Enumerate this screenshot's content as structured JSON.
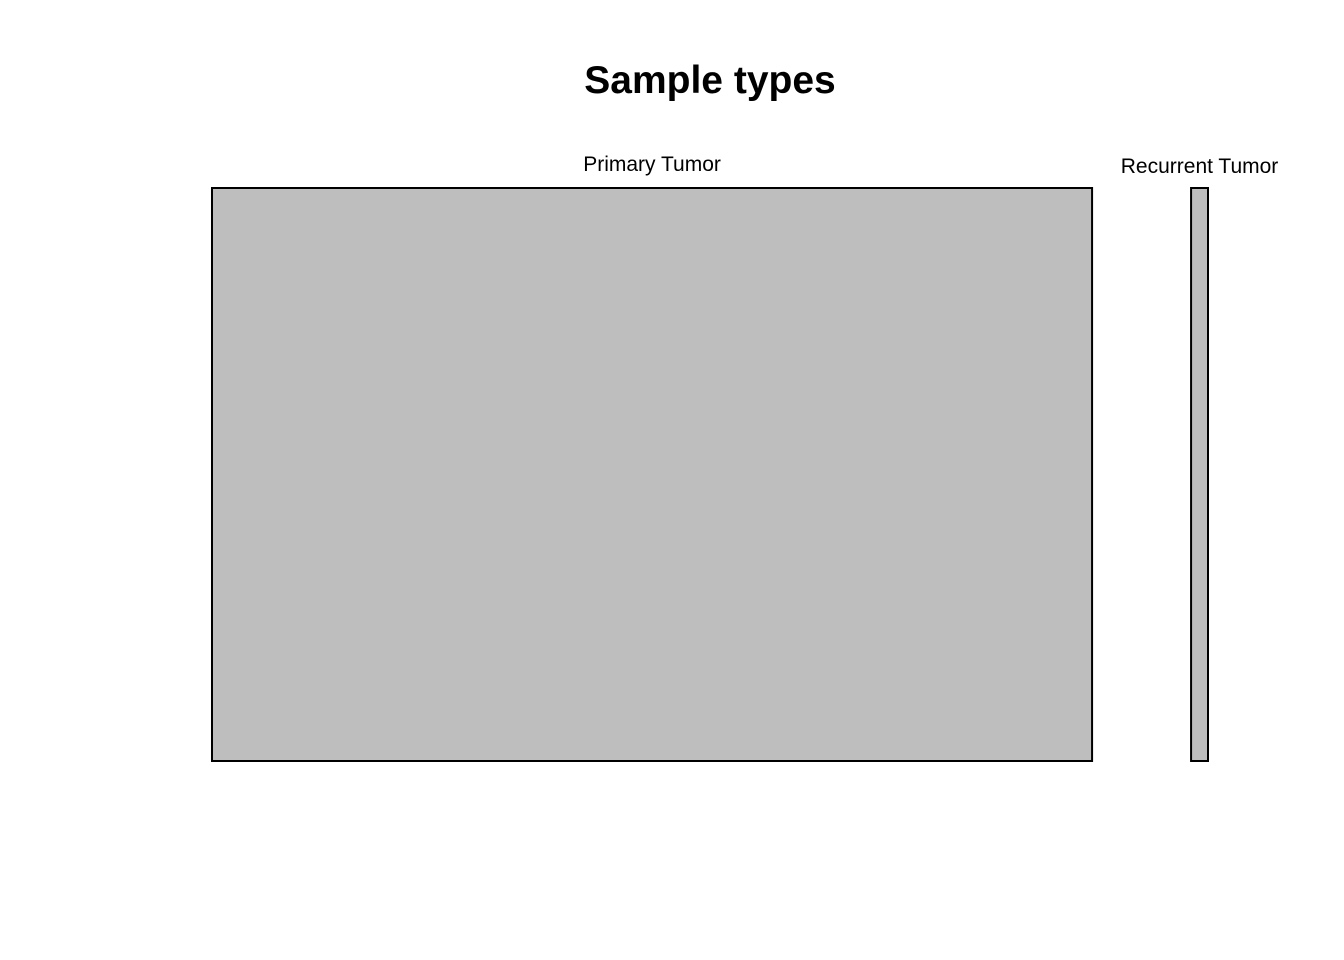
{
  "chart_data": {
    "type": "mosaic",
    "title": "Sample types",
    "categories": [
      "Primary Tumor",
      "Recurrent Tumor"
    ],
    "values": [
      52,
      1
    ],
    "fill_color": "#bebebe",
    "border_color": "#000000",
    "grid": false,
    "legend": "none"
  }
}
